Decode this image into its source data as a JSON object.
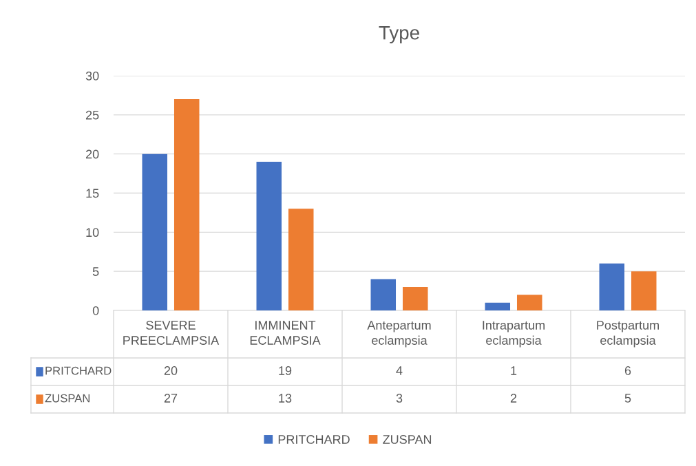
{
  "chart_data": {
    "type": "bar",
    "title": "Type",
    "categories": [
      "SEVERE PREECLAMPSIA",
      "IMMINENT ECLAMPSIA",
      "Antepartum eclampsia",
      "Intrapartum eclampsia",
      "Postpartum eclampsia"
    ],
    "series": [
      {
        "name": "PRITCHARD",
        "color": "#4472c4",
        "values": [
          20,
          19,
          4,
          1,
          6
        ]
      },
      {
        "name": "ZUSPAN",
        "color": "#ed7d31",
        "values": [
          27,
          13,
          3,
          2,
          5
        ]
      }
    ],
    "ylim": [
      0,
      30
    ],
    "yticks": [
      0,
      5,
      10,
      15,
      20,
      25,
      30
    ],
    "grid": "y",
    "legend": "bottom",
    "data_labels": true
  }
}
